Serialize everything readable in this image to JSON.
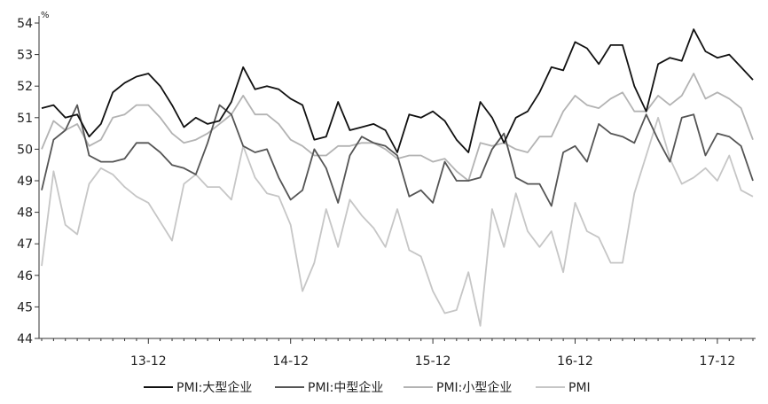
{
  "chart_data": {
    "type": "line",
    "unit": "%",
    "ylim": [
      44,
      54
    ],
    "yticks": [
      44,
      45,
      46,
      47,
      48,
      49,
      50,
      51,
      52,
      53,
      54
    ],
    "x_tick_labels": [
      {
        "label": "13-12",
        "index": 9
      },
      {
        "label": "14-12",
        "index": 21
      },
      {
        "label": "15-12",
        "index": 33
      },
      {
        "label": "16-12",
        "index": 45
      },
      {
        "label": "17-12",
        "index": 57
      }
    ],
    "n_points": 61,
    "grid": false,
    "legend_position": "bottom",
    "series": [
      {
        "name": "PMI:大型企业",
        "color": "#111111",
        "values": [
          51.3,
          51.4,
          51.0,
          51.1,
          50.4,
          50.8,
          51.8,
          52.1,
          52.3,
          52.4,
          52.0,
          51.4,
          50.7,
          51.0,
          50.8,
          50.9,
          51.5,
          52.6,
          51.9,
          52.0,
          51.9,
          51.6,
          51.4,
          50.3,
          50.4,
          51.5,
          50.6,
          50.7,
          50.8,
          50.6,
          49.9,
          51.1,
          51.0,
          51.2,
          50.9,
          50.3,
          49.9,
          51.5,
          51.0,
          50.2,
          51.0,
          51.2,
          51.8,
          52.6,
          52.5,
          53.4,
          53.2,
          52.7,
          53.3,
          53.3,
          52.0,
          51.2,
          52.7,
          52.9,
          52.8,
          53.8,
          53.1,
          52.9,
          53.0,
          52.6,
          52.2
        ]
      },
      {
        "name": "PMI:中型企业",
        "color": "#555555",
        "values": [
          48.7,
          50.3,
          50.6,
          51.4,
          49.8,
          49.6,
          49.6,
          49.7,
          50.2,
          50.2,
          49.9,
          49.5,
          49.4,
          49.2,
          50.2,
          51.4,
          51.1,
          50.1,
          49.9,
          50.0,
          49.1,
          48.4,
          48.7,
          50.0,
          49.4,
          48.3,
          49.8,
          50.4,
          50.2,
          50.1,
          49.8,
          48.5,
          48.7,
          48.3,
          49.6,
          49.0,
          49.0,
          49.1,
          50.0,
          50.5,
          49.1,
          48.9,
          48.9,
          48.2,
          49.9,
          50.1,
          49.6,
          50.8,
          50.5,
          50.4,
          50.2,
          51.1,
          50.3,
          49.6,
          51.0,
          51.1,
          49.8,
          50.5,
          50.4,
          50.1,
          49.0
        ]
      },
      {
        "name": "PMI:小型企业",
        "color": "#b3b3b3",
        "values": [
          50.0,
          50.9,
          50.6,
          50.8,
          50.1,
          50.3,
          51.0,
          51.1,
          51.4,
          51.4,
          51.0,
          50.5,
          50.2,
          50.3,
          50.5,
          50.8,
          51.1,
          51.7,
          51.1,
          51.1,
          50.8,
          50.3,
          50.1,
          49.8,
          49.8,
          50.1,
          50.1,
          50.2,
          50.2,
          50.0,
          49.7,
          49.8,
          49.8,
          49.6,
          49.7,
          49.3,
          49.0,
          50.2,
          50.1,
          50.2,
          50.0,
          49.9,
          50.4,
          50.4,
          51.2,
          51.7,
          51.4,
          51.3,
          51.6,
          51.8,
          51.2,
          51.2,
          51.7,
          51.4,
          51.7,
          52.4,
          51.6,
          51.8,
          51.6,
          51.3,
          50.3
        ]
      },
      {
        "name": "PMI",
        "color": "#c6c6c6",
        "values": [
          46.3,
          49.3,
          47.6,
          47.3,
          48.9,
          49.4,
          49.2,
          48.8,
          48.5,
          48.3,
          47.7,
          47.1,
          48.9,
          49.2,
          48.8,
          48.8,
          48.4,
          50.1,
          49.1,
          48.6,
          48.5,
          47.6,
          45.5,
          46.4,
          48.1,
          46.9,
          48.4,
          47.9,
          47.5,
          46.9,
          48.1,
          46.8,
          46.6,
          45.5,
          44.8,
          44.9,
          46.1,
          44.4,
          48.1,
          46.9,
          48.6,
          47.4,
          46.9,
          47.4,
          46.1,
          48.3,
          47.4,
          47.2,
          46.4,
          46.4,
          48.6,
          49.8,
          51.0,
          49.7,
          48.9,
          49.1,
          49.4,
          49.0,
          49.8,
          48.7,
          48.5
        ]
      }
    ]
  }
}
